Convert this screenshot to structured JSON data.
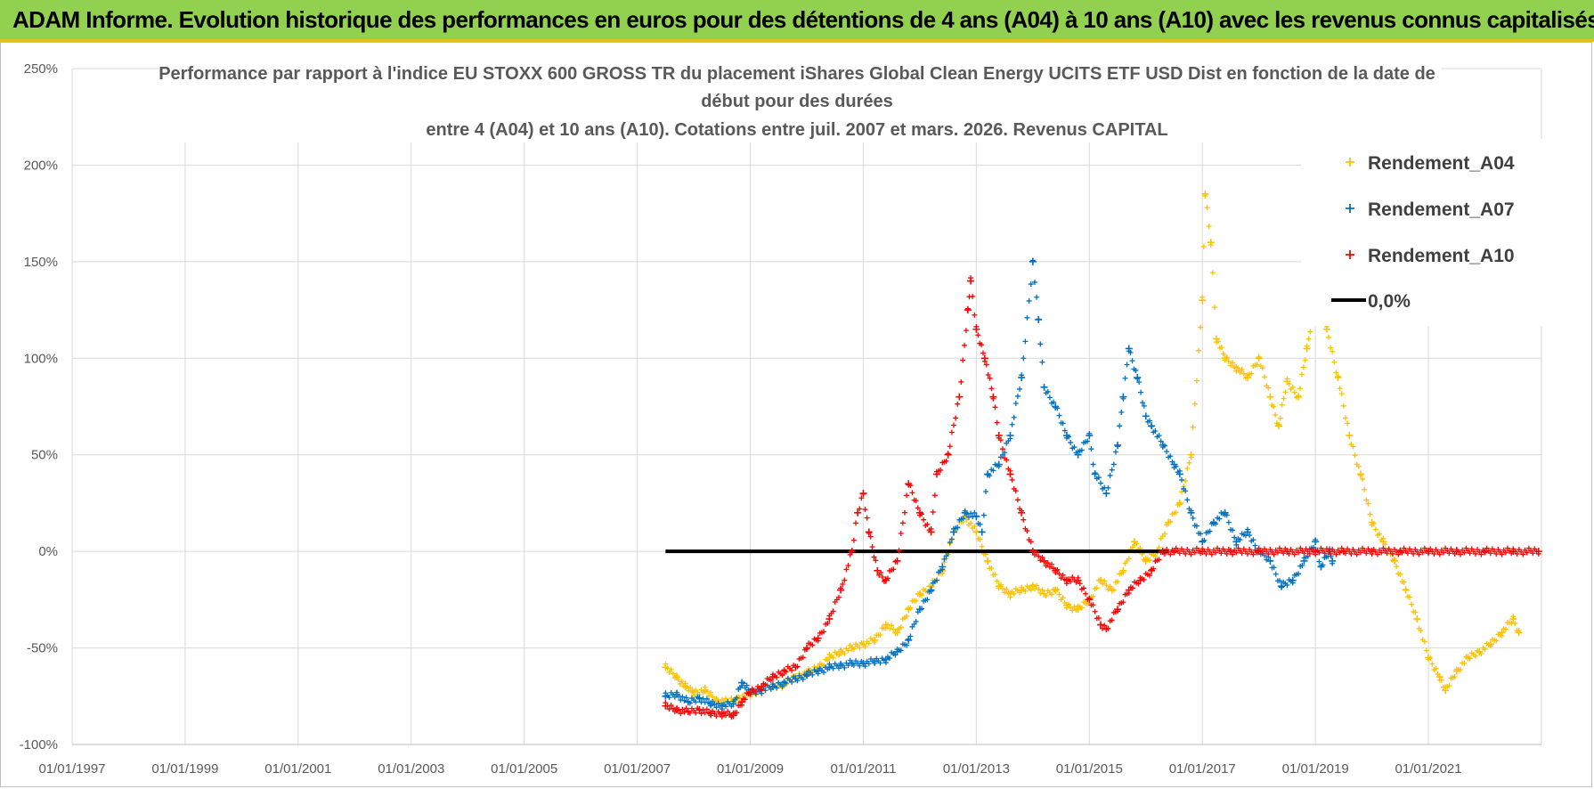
{
  "banner": {
    "title": "ADAM Informe. Evolution historique des performances en euros pour des détentions de 4 ans (A04) à 10 ans (A10) avec les revenus connus capitalisés",
    "background": "#92d050"
  },
  "chart_data": {
    "type": "scatter",
    "title_lines": [
      "Performance par rapport à l'indice EU STOXX 600 GROSS TR  du placement iShares Global Clean Energy UCITS ETF USD Dist en fonction de la date de",
      "début pour des durées",
      "entre 4 (A04) et 10 ans (A10). Cotations entre juil. 2007 et mars. 2026. Revenus CAPITAL"
    ],
    "xlabel": "",
    "ylabel": "",
    "xlim": [
      1997.0,
      2023.0
    ],
    "ylim": [
      -100,
      250
    ],
    "y_ticks": [
      250,
      200,
      150,
      100,
      50,
      0,
      -50,
      -100
    ],
    "y_tick_labels": [
      "250%",
      "200%",
      "150%",
      "100%",
      "50%",
      "0%",
      "-50%",
      "-100%"
    ],
    "x_ticks": [
      1997,
      1999,
      2001,
      2003,
      2005,
      2007,
      2009,
      2011,
      2013,
      2015,
      2017,
      2019,
      2021
    ],
    "x_tick_labels": [
      "01/01/1997",
      "01/01/1999",
      "01/01/2001",
      "01/01/2003",
      "01/01/2005",
      "01/01/2007",
      "01/01/2009",
      "01/01/2011",
      "01/01/2013",
      "01/01/2015",
      "01/01/2017",
      "01/01/2019",
      "01/01/2021"
    ],
    "grid": true,
    "legend_position": "top-right",
    "series": [
      {
        "name": "Rendement_A04",
        "color": "#ffc000",
        "marker": "+",
        "points": [
          [
            2007.5,
            -60
          ],
          [
            2007.7,
            -65
          ],
          [
            2007.85,
            -70
          ],
          [
            2008.0,
            -73
          ],
          [
            2008.2,
            -72
          ],
          [
            2008.4,
            -77
          ],
          [
            2008.6,
            -78
          ],
          [
            2008.8,
            -76
          ],
          [
            2009.0,
            -74
          ],
          [
            2009.2,
            -72
          ],
          [
            2009.4,
            -70
          ],
          [
            2009.6,
            -69
          ],
          [
            2009.8,
            -65
          ],
          [
            2010.0,
            -63
          ],
          [
            2010.2,
            -60
          ],
          [
            2010.4,
            -55
          ],
          [
            2010.6,
            -52
          ],
          [
            2010.8,
            -50
          ],
          [
            2011.0,
            -48
          ],
          [
            2011.2,
            -46
          ],
          [
            2011.4,
            -38
          ],
          [
            2011.6,
            -42
          ],
          [
            2011.8,
            -30
          ],
          [
            2012.0,
            -22
          ],
          [
            2012.2,
            -18
          ],
          [
            2012.4,
            -10
          ],
          [
            2012.6,
            10
          ],
          [
            2012.8,
            18
          ],
          [
            2013.0,
            10
          ],
          [
            2013.2,
            -5
          ],
          [
            2013.4,
            -18
          ],
          [
            2013.6,
            -22
          ],
          [
            2013.8,
            -20
          ],
          [
            2014.0,
            -18
          ],
          [
            2014.2,
            -22
          ],
          [
            2014.4,
            -20
          ],
          [
            2014.6,
            -28
          ],
          [
            2014.8,
            -30
          ],
          [
            2015.0,
            -25
          ],
          [
            2015.2,
            -15
          ],
          [
            2015.4,
            -20
          ],
          [
            2015.6,
            -10
          ],
          [
            2015.8,
            5
          ],
          [
            2016.0,
            -5
          ],
          [
            2016.2,
            0
          ],
          [
            2016.4,
            15
          ],
          [
            2016.6,
            25
          ],
          [
            2016.8,
            50
          ],
          [
            2017.0,
            130
          ],
          [
            2017.05,
            185
          ],
          [
            2017.15,
            160
          ],
          [
            2017.25,
            110
          ],
          [
            2017.4,
            100
          ],
          [
            2017.6,
            95
          ],
          [
            2017.8,
            90
          ],
          [
            2018.0,
            100
          ],
          [
            2018.2,
            80
          ],
          [
            2018.35,
            65
          ],
          [
            2018.5,
            88
          ],
          [
            2018.7,
            80
          ],
          [
            2018.85,
            105
          ],
          [
            2019.0,
            130
          ],
          [
            2019.1,
            155
          ],
          [
            2019.2,
            115
          ],
          [
            2019.4,
            90
          ],
          [
            2019.6,
            60
          ],
          [
            2019.8,
            40
          ],
          [
            2020.0,
            15
          ],
          [
            2020.2,
            5
          ],
          [
            2020.4,
            -5
          ],
          [
            2020.6,
            -20
          ],
          [
            2020.8,
            -35
          ],
          [
            2021.0,
            -55
          ],
          [
            2021.2,
            -65
          ],
          [
            2021.3,
            -72
          ],
          [
            2021.5,
            -62
          ],
          [
            2021.7,
            -55
          ],
          [
            2021.9,
            -52
          ],
          [
            2022.1,
            -48
          ],
          [
            2022.3,
            -42
          ],
          [
            2022.5,
            -35
          ],
          [
            2022.6,
            -42
          ]
        ]
      },
      {
        "name": "Rendement_A07",
        "color": "#0070c0",
        "marker": "+",
        "points": [
          [
            2007.5,
            -75
          ],
          [
            2007.7,
            -74
          ],
          [
            2007.9,
            -78
          ],
          [
            2008.1,
            -76
          ],
          [
            2008.3,
            -79
          ],
          [
            2008.5,
            -80
          ],
          [
            2008.7,
            -79
          ],
          [
            2008.85,
            -68
          ],
          [
            2009.0,
            -73
          ],
          [
            2009.2,
            -72
          ],
          [
            2009.4,
            -70
          ],
          [
            2009.6,
            -68
          ],
          [
            2009.8,
            -66
          ],
          [
            2010.0,
            -64
          ],
          [
            2010.2,
            -62
          ],
          [
            2010.4,
            -60
          ],
          [
            2010.6,
            -59
          ],
          [
            2010.8,
            -58
          ],
          [
            2011.0,
            -58
          ],
          [
            2011.2,
            -57
          ],
          [
            2011.4,
            -56
          ],
          [
            2011.6,
            -52
          ],
          [
            2011.8,
            -46
          ],
          [
            2012.0,
            -30
          ],
          [
            2012.2,
            -20
          ],
          [
            2012.4,
            -8
          ],
          [
            2012.6,
            10
          ],
          [
            2012.8,
            20
          ],
          [
            2013.0,
            18
          ],
          [
            2013.1,
            10
          ],
          [
            2013.2,
            40
          ],
          [
            2013.4,
            45
          ],
          [
            2013.6,
            60
          ],
          [
            2013.8,
            90
          ],
          [
            2014.0,
            150
          ],
          [
            2014.1,
            120
          ],
          [
            2014.2,
            85
          ],
          [
            2014.4,
            75
          ],
          [
            2014.6,
            60
          ],
          [
            2014.8,
            50
          ],
          [
            2015.0,
            60
          ],
          [
            2015.1,
            40
          ],
          [
            2015.3,
            30
          ],
          [
            2015.5,
            55
          ],
          [
            2015.6,
            80
          ],
          [
            2015.7,
            105
          ],
          [
            2015.85,
            90
          ],
          [
            2016.0,
            70
          ],
          [
            2016.1,
            65
          ],
          [
            2016.3,
            55
          ],
          [
            2016.5,
            45
          ],
          [
            2016.6,
            40
          ],
          [
            2016.8,
            20
          ],
          [
            2017.0,
            5
          ],
          [
            2017.2,
            15
          ],
          [
            2017.4,
            20
          ],
          [
            2017.6,
            5
          ],
          [
            2017.8,
            10
          ],
          [
            2018.0,
            0
          ],
          [
            2018.2,
            -5
          ],
          [
            2018.4,
            -18
          ],
          [
            2018.6,
            -15
          ],
          [
            2018.8,
            -5
          ],
          [
            2019.0,
            5
          ],
          [
            2019.1,
            -8
          ],
          [
            2019.25,
            0
          ],
          [
            2019.3,
            -5
          ]
        ]
      },
      {
        "name": "Rendement_A10",
        "color": "#ff0000",
        "marker": "+",
        "points": [
          [
            2007.5,
            -80
          ],
          [
            2007.7,
            -82
          ],
          [
            2007.9,
            -83
          ],
          [
            2008.1,
            -82
          ],
          [
            2008.3,
            -84
          ],
          [
            2008.5,
            -84
          ],
          [
            2008.7,
            -85
          ],
          [
            2008.85,
            -78
          ],
          [
            2009.0,
            -73
          ],
          [
            2009.2,
            -70
          ],
          [
            2009.4,
            -65
          ],
          [
            2009.6,
            -62
          ],
          [
            2009.8,
            -60
          ],
          [
            2010.0,
            -50
          ],
          [
            2010.2,
            -45
          ],
          [
            2010.4,
            -35
          ],
          [
            2010.6,
            -20
          ],
          [
            2010.8,
            0
          ],
          [
            2010.9,
            20
          ],
          [
            2011.0,
            30
          ],
          [
            2011.1,
            10
          ],
          [
            2011.25,
            -10
          ],
          [
            2011.4,
            -15
          ],
          [
            2011.6,
            -5
          ],
          [
            2011.8,
            35
          ],
          [
            2012.0,
            20
          ],
          [
            2012.2,
            10
          ],
          [
            2012.3,
            40
          ],
          [
            2012.5,
            50
          ],
          [
            2012.7,
            80
          ],
          [
            2012.85,
            125
          ],
          [
            2012.9,
            140
          ],
          [
            2013.0,
            115
          ],
          [
            2013.15,
            100
          ],
          [
            2013.3,
            80
          ],
          [
            2013.4,
            60
          ],
          [
            2013.6,
            40
          ],
          [
            2013.8,
            20
          ],
          [
            2014.0,
            0
          ],
          [
            2014.2,
            -5
          ],
          [
            2014.4,
            -10
          ],
          [
            2014.6,
            -15
          ],
          [
            2014.8,
            -15
          ],
          [
            2015.0,
            -25
          ],
          [
            2015.2,
            -38
          ],
          [
            2015.3,
            -40
          ],
          [
            2015.5,
            -30
          ],
          [
            2015.7,
            -20
          ],
          [
            2015.9,
            -15
          ],
          [
            2016.1,
            -10
          ],
          [
            2016.3,
            0
          ],
          [
            2016.5,
            0
          ],
          [
            2017.0,
            0
          ],
          [
            2017.5,
            0
          ],
          [
            2018.0,
            0
          ],
          [
            2018.5,
            0
          ],
          [
            2019.0,
            0
          ],
          [
            2019.5,
            0
          ],
          [
            2020.0,
            0
          ],
          [
            2020.5,
            0
          ],
          [
            2021.0,
            0
          ],
          [
            2021.5,
            0
          ],
          [
            2022.0,
            0
          ],
          [
            2022.5,
            0
          ],
          [
            2022.95,
            0
          ]
        ]
      },
      {
        "name": "0,0%",
        "color": "#000000",
        "marker": "line",
        "points": [
          [
            2007.5,
            0
          ],
          [
            2016.4,
            0
          ]
        ]
      }
    ]
  }
}
